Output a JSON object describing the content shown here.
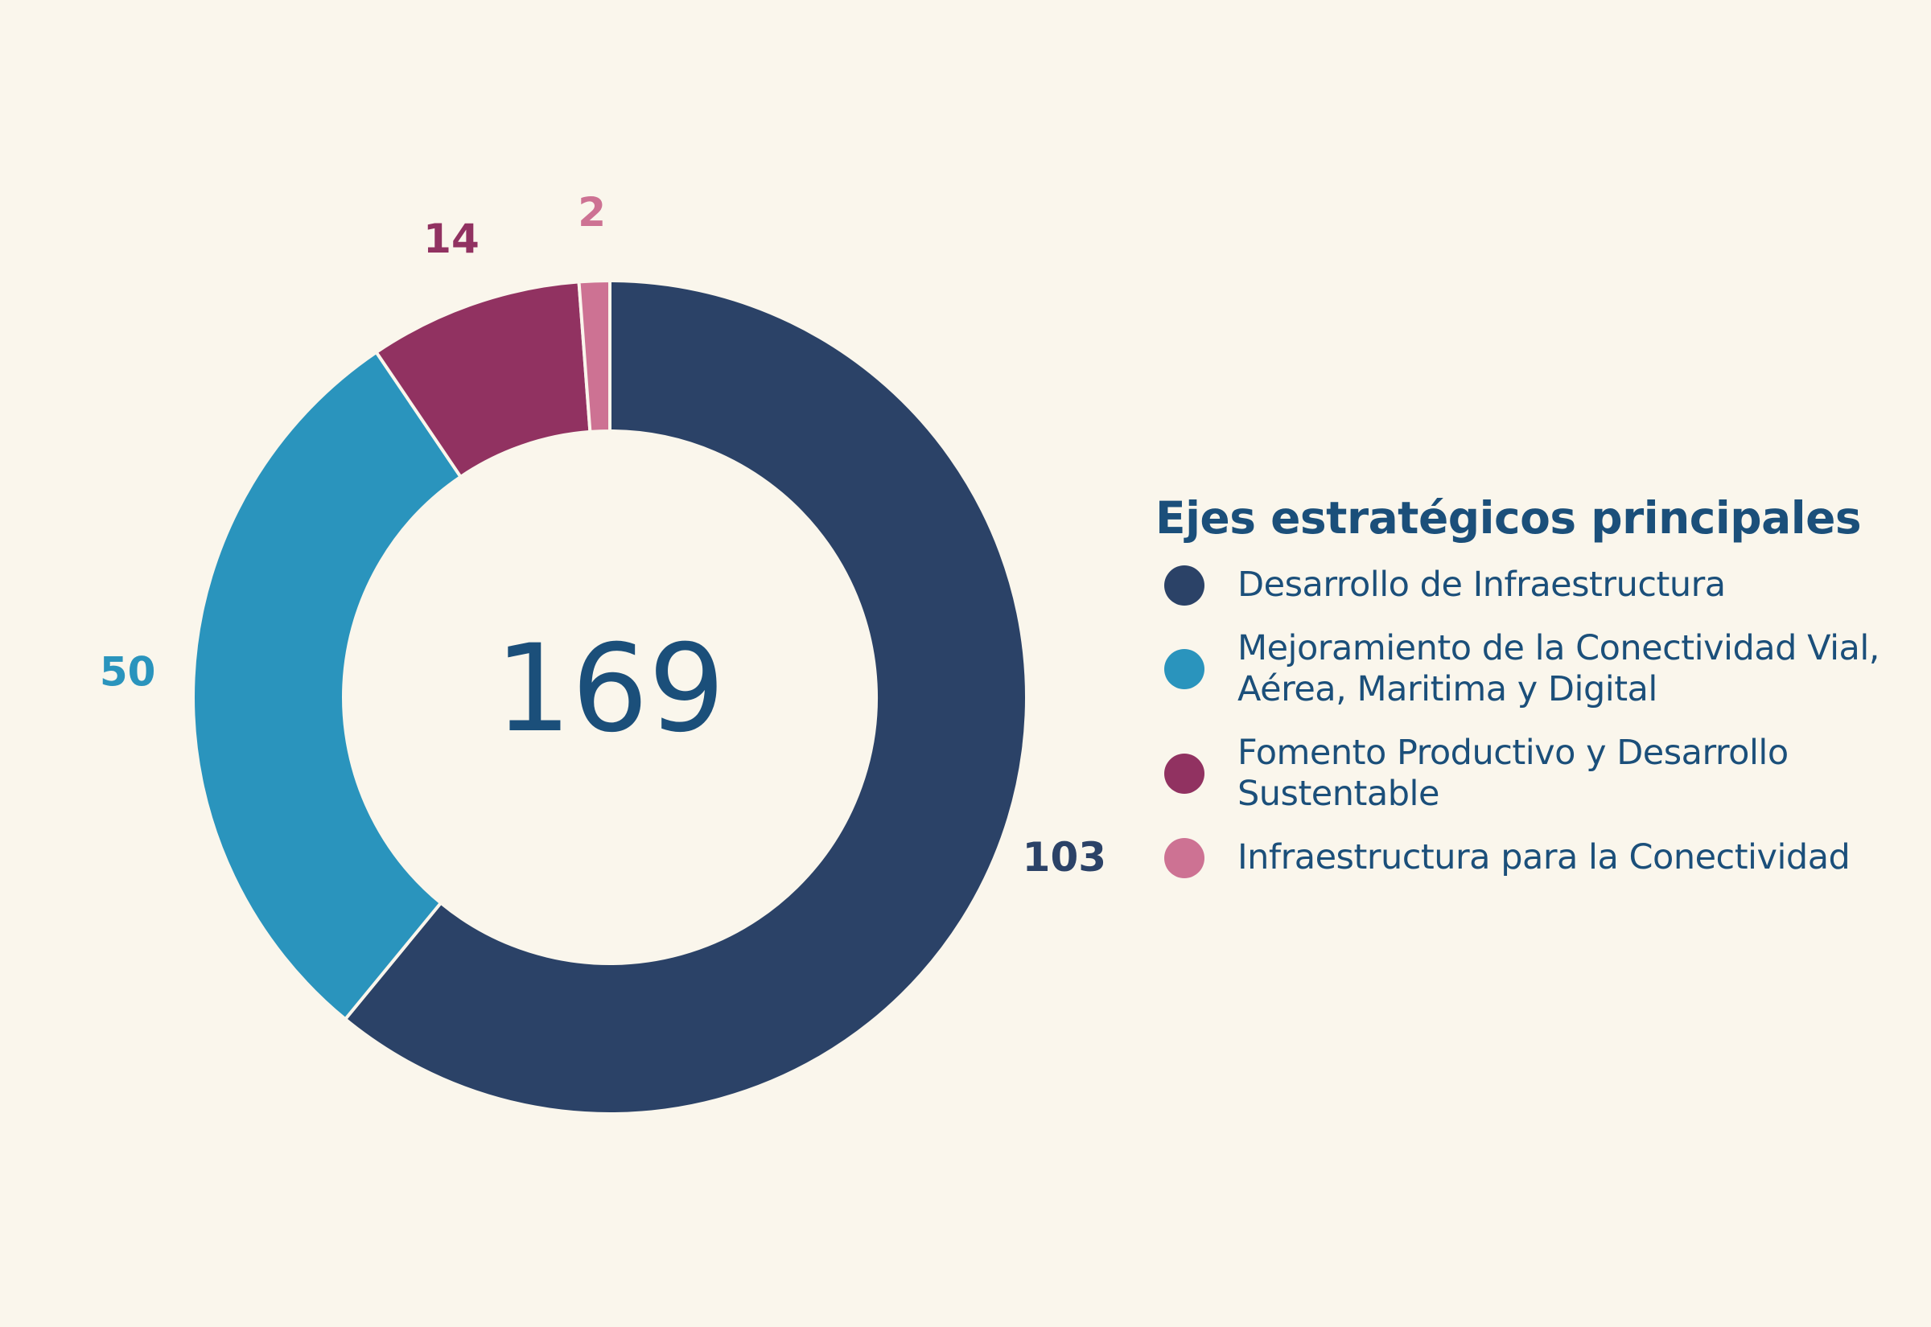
{
  "chart_data": {
    "type": "pie",
    "variant": "donut",
    "center_label": "169",
    "legend_title": "Ejes estratégicos principales",
    "legend_placement": "right",
    "slices": [
      {
        "label": "Desarrollo de Infraestructura",
        "value": 103,
        "value_label": "103",
        "color": "#2B4267"
      },
      {
        "label": "Mejoramiento de la Conectividad Vial, Aérea, Maritima y Digital",
        "value": 50,
        "value_label": "50",
        "color": "#2A94BD"
      },
      {
        "label": "Fomento Productivo y Desarrollo Sustentable",
        "value": 14,
        "value_label": "14",
        "color": "#913261"
      },
      {
        "label": "Infraestructura para la Conectividad",
        "value": 2,
        "value_label": "2",
        "color": "#CD7293"
      }
    ]
  }
}
